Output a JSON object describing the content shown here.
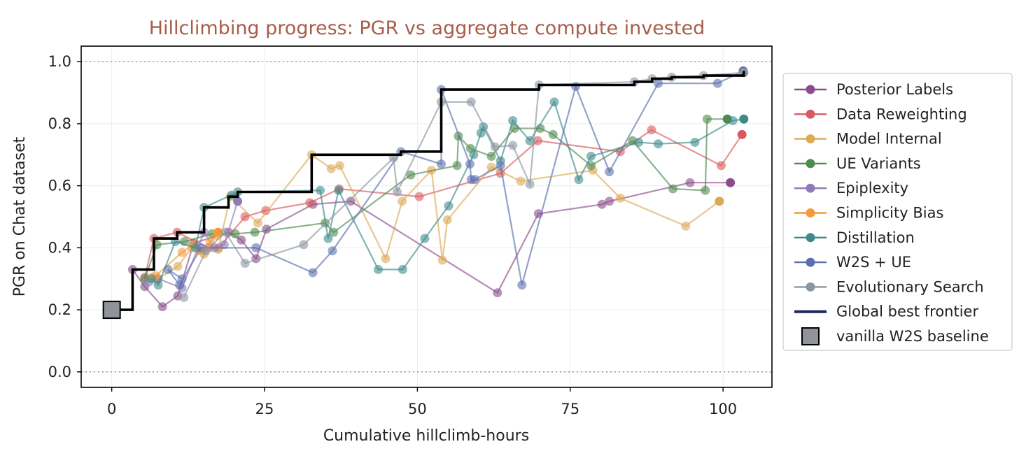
{
  "chart_data": {
    "type": "line",
    "title": "Hillclimbing progress: PGR vs aggregate compute invested",
    "xlabel": "Cumulative hillclimb-hours",
    "ylabel": "PGR on Chat  dataset",
    "xlim": [
      -5,
      108
    ],
    "ylim": [
      -0.05,
      1.05
    ],
    "xticks": [
      0,
      25,
      50,
      75,
      100
    ],
    "yticks": [
      0.0,
      0.2,
      0.4,
      0.6,
      0.8,
      1.0
    ],
    "ytick_labels": [
      "0.0",
      "0.2",
      "0.4",
      "0.6",
      "0.8",
      "1.0"
    ],
    "reference_lines": [
      0.0,
      1.0
    ],
    "grid": true,
    "legend_position": "right-outside",
    "series": [
      {
        "name": "Posterior Labels",
        "color": "#8a4d8a",
        "points": [
          [
            3.4,
            0.33
          ],
          [
            5.4,
            0.275
          ],
          [
            8.3,
            0.21
          ],
          [
            10.8,
            0.245
          ],
          [
            13.4,
            0.415
          ],
          [
            19.1,
            0.45
          ],
          [
            21.2,
            0.425
          ],
          [
            23.6,
            0.365
          ],
          [
            25.3,
            0.46
          ],
          [
            32.9,
            0.54
          ],
          [
            39.1,
            0.55
          ],
          [
            63.1,
            0.255
          ],
          [
            69.8,
            0.51
          ],
          [
            80.2,
            0.54
          ],
          [
            81.4,
            0.55
          ],
          [
            94.6,
            0.61
          ],
          [
            101.2,
            0.61
          ]
        ]
      },
      {
        "name": "Data Reweighting",
        "color": "#d95a5e",
        "points": [
          [
            5.4,
            0.305
          ],
          [
            6.9,
            0.43
          ],
          [
            10.7,
            0.45
          ],
          [
            15.8,
            0.4
          ],
          [
            17.5,
            0.4
          ],
          [
            21.8,
            0.5
          ],
          [
            25.2,
            0.52
          ],
          [
            32.4,
            0.545
          ],
          [
            37.2,
            0.59
          ],
          [
            50.3,
            0.565
          ],
          [
            63.6,
            0.64
          ],
          [
            69.7,
            0.745
          ],
          [
            83.2,
            0.71
          ],
          [
            88.3,
            0.78
          ],
          [
            99.7,
            0.665
          ],
          [
            103.1,
            0.765
          ]
        ]
      },
      {
        "name": "Model Internal",
        "color": "#dcaa55",
        "points": [
          [
            7.6,
            0.3
          ],
          [
            10.8,
            0.34
          ],
          [
            13.1,
            0.4
          ],
          [
            17.4,
            0.395
          ],
          [
            19.4,
            0.565
          ],
          [
            23.9,
            0.48
          ],
          [
            32.7,
            0.7
          ],
          [
            35.9,
            0.655
          ],
          [
            37.3,
            0.665
          ],
          [
            44.8,
            0.365
          ],
          [
            47.5,
            0.55
          ],
          [
            52.3,
            0.65
          ],
          [
            54.1,
            0.36
          ],
          [
            54.9,
            0.49
          ],
          [
            62.1,
            0.66
          ],
          [
            66.9,
            0.615
          ],
          [
            78.7,
            0.65
          ],
          [
            83.2,
            0.56
          ],
          [
            93.9,
            0.47
          ],
          [
            99.4,
            0.55
          ]
        ]
      },
      {
        "name": "UE Variants",
        "color": "#4e8a4f",
        "points": [
          [
            5.4,
            0.3
          ],
          [
            7.4,
            0.41
          ],
          [
            11.9,
            0.42
          ],
          [
            16.4,
            0.445
          ],
          [
            20.2,
            0.445
          ],
          [
            23.4,
            0.45
          ],
          [
            34.9,
            0.48
          ],
          [
            36.3,
            0.45
          ],
          [
            48.9,
            0.635
          ],
          [
            56.5,
            0.665
          ],
          [
            56.7,
            0.76
          ],
          [
            58.7,
            0.72
          ],
          [
            62.1,
            0.695
          ],
          [
            65.9,
            0.785
          ],
          [
            70.1,
            0.785
          ],
          [
            72.2,
            0.765
          ],
          [
            78.4,
            0.665
          ],
          [
            85.2,
            0.745
          ],
          [
            91.8,
            0.59
          ],
          [
            97.1,
            0.585
          ],
          [
            97.4,
            0.815
          ],
          [
            100.7,
            0.815
          ]
        ]
      },
      {
        "name": "Epiplexity",
        "color": "#8e7bb8",
        "points": [
          [
            6.1,
            0.29
          ],
          [
            7.6,
            0.3
          ],
          [
            11.5,
            0.27
          ],
          [
            15.1,
            0.45
          ],
          [
            16.8,
            0.4
          ],
          [
            18.4,
            0.41
          ],
          [
            20.6,
            0.55
          ]
        ]
      },
      {
        "name": "Simplicity Bias",
        "color": "#f39a3a",
        "points": [
          [
            6.6,
            0.305
          ],
          [
            7.2,
            0.31
          ],
          [
            11.5,
            0.385
          ],
          [
            13.3,
            0.41
          ],
          [
            14.4,
            0.39
          ],
          [
            15.1,
            0.38
          ],
          [
            16.1,
            0.42
          ],
          [
            17.2,
            0.44
          ],
          [
            17.4,
            0.45
          ]
        ]
      },
      {
        "name": "Distillation",
        "color": "#3f8a8a",
        "points": [
          [
            6.5,
            0.3
          ],
          [
            7.6,
            0.28
          ],
          [
            10.4,
            0.42
          ],
          [
            13.7,
            0.4
          ],
          [
            15.1,
            0.53
          ],
          [
            19.6,
            0.57
          ],
          [
            20.6,
            0.58
          ],
          [
            34.1,
            0.585
          ],
          [
            35.4,
            0.43
          ],
          [
            37.1,
            0.585
          ],
          [
            43.6,
            0.33
          ],
          [
            47.6,
            0.33
          ],
          [
            51.2,
            0.43
          ],
          [
            55.1,
            0.535
          ],
          [
            59.2,
            0.7
          ],
          [
            60.4,
            0.77
          ],
          [
            60.8,
            0.79
          ],
          [
            63.6,
            0.68
          ],
          [
            65.6,
            0.81
          ],
          [
            68.4,
            0.745
          ],
          [
            72.4,
            0.87
          ],
          [
            76.4,
            0.62
          ],
          [
            78.4,
            0.695
          ],
          [
            86.2,
            0.74
          ],
          [
            89.4,
            0.735
          ],
          [
            95.4,
            0.74
          ],
          [
            101.6,
            0.81
          ],
          [
            103.4,
            0.815
          ]
        ]
      },
      {
        "name": "W2S + UE",
        "color": "#5b6fad",
        "points": [
          [
            11.5,
            0.3
          ],
          [
            9.2,
            0.33
          ],
          [
            11.1,
            0.28
          ],
          [
            14.6,
            0.4
          ],
          [
            23.6,
            0.4
          ],
          [
            32.9,
            0.32
          ],
          [
            36.1,
            0.39
          ],
          [
            47.3,
            0.71
          ],
          [
            53.9,
            0.67
          ],
          [
            53.9,
            0.91
          ],
          [
            58.6,
            0.67
          ],
          [
            58.8,
            0.62
          ],
          [
            59.4,
            0.62
          ],
          [
            63.6,
            0.665
          ],
          [
            67.1,
            0.28
          ],
          [
            75.9,
            0.92
          ],
          [
            81.4,
            0.645
          ],
          [
            89.4,
            0.93
          ],
          [
            99.1,
            0.93
          ],
          [
            103.3,
            0.97
          ]
        ]
      },
      {
        "name": "Evolutionary Search",
        "color": "#8a96a3",
        "points": [
          [
            11.8,
            0.24
          ],
          [
            15.4,
            0.39
          ],
          [
            18.6,
            0.45
          ],
          [
            21.8,
            0.35
          ],
          [
            31.4,
            0.41
          ],
          [
            46.1,
            0.69
          ],
          [
            46.7,
            0.58
          ],
          [
            53.9,
            0.87
          ],
          [
            58.8,
            0.87
          ],
          [
            62.7,
            0.725
          ],
          [
            65.6,
            0.73
          ],
          [
            68.4,
            0.605
          ],
          [
            69.9,
            0.925
          ],
          [
            85.5,
            0.935
          ],
          [
            88.4,
            0.945
          ],
          [
            91.6,
            0.95
          ],
          [
            96.8,
            0.955
          ],
          [
            103.4,
            0.965
          ]
        ]
      }
    ],
    "frontier": {
      "name": "Global best frontier",
      "color": "#000000",
      "legend_color": "#1e2560",
      "points": [
        [
          0,
          0.2
        ],
        [
          3.4,
          0.2
        ],
        [
          3.4,
          0.33
        ],
        [
          6.9,
          0.33
        ],
        [
          6.9,
          0.43
        ],
        [
          10.7,
          0.43
        ],
        [
          10.7,
          0.45
        ],
        [
          15.1,
          0.45
        ],
        [
          15.1,
          0.53
        ],
        [
          19.1,
          0.53
        ],
        [
          19.1,
          0.565
        ],
        [
          20.6,
          0.565
        ],
        [
          20.6,
          0.58
        ],
        [
          32.7,
          0.58
        ],
        [
          32.7,
          0.7
        ],
        [
          47.3,
          0.7
        ],
        [
          47.3,
          0.71
        ],
        [
          53.9,
          0.71
        ],
        [
          53.9,
          0.91
        ],
        [
          69.9,
          0.91
        ],
        [
          69.9,
          0.925
        ],
        [
          85.5,
          0.925
        ],
        [
          85.5,
          0.935
        ],
        [
          88.4,
          0.935
        ],
        [
          88.4,
          0.945
        ],
        [
          91.6,
          0.945
        ],
        [
          91.6,
          0.95
        ],
        [
          96.8,
          0.95
        ],
        [
          96.8,
          0.955
        ],
        [
          103.4,
          0.955
        ],
        [
          103.4,
          0.97
        ]
      ]
    },
    "baseline": {
      "name": "vanilla W2S baseline",
      "color": "#909399",
      "x": 0,
      "y": 0.2
    }
  }
}
